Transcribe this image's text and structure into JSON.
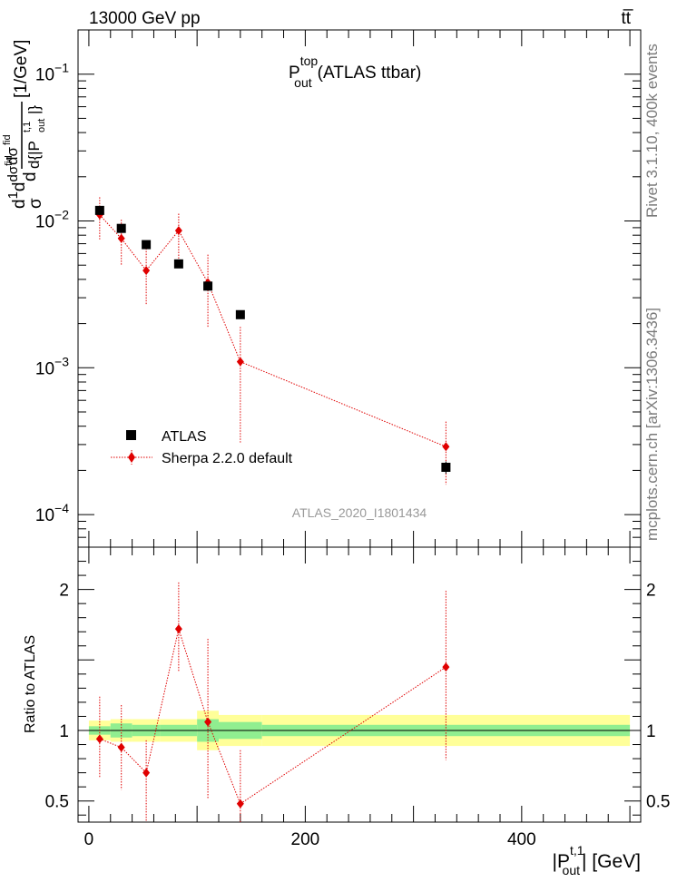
{
  "header": {
    "energy_label": "13000 GeV pp",
    "process_label": "tt̅"
  },
  "side_labels": {
    "rivet": "Rivet 3.1.10,  400k events",
    "mcplots": "mcplots.cern.ch [arXiv:1306.3436]"
  },
  "colors": {
    "data": "#000000",
    "mc": "#e00000",
    "band_inner": "#90ee90",
    "band_outer": "#ffff99",
    "watermark": "#999999"
  },
  "chart_data": [
    {
      "type": "scatter",
      "title_main": "P",
      "title_sup": "top",
      "title_sub": "out",
      "title_tail": "(ATLAS ttbar)",
      "ylabel": "d¹⁄σ d dσᶠᶦᵈ / d{|Pᵗ·¹ out|} [1/GeV]",
      "ylabel_unit": "[1/GeV]",
      "yscale": "log",
      "ylim": [
        6e-05,
        0.2
      ],
      "xlim": [
        -10,
        510
      ],
      "y_ticks": [
        {
          "value": 0.1,
          "base": "10",
          "exp": "−1"
        },
        {
          "value": 0.01,
          "base": "10",
          "exp": "−2"
        },
        {
          "value": 0.001,
          "base": "10",
          "exp": "−3"
        },
        {
          "value": 0.0001,
          "base": "10",
          "exp": "−4"
        }
      ],
      "watermark": "ATLAS_2020_I1801434",
      "legend_position": "bottom-left",
      "series": [
        {
          "name": "ATLAS",
          "marker": "square",
          "x": [
            10,
            30,
            53,
            83,
            110,
            140,
            330
          ],
          "y": [
            0.0118,
            0.0089,
            0.0069,
            0.0051,
            0.0036,
            0.0023,
            0.00021
          ],
          "yerr_low": [
            0.0008,
            0.0006,
            0.0004,
            0.0003,
            0.0002,
            0.00012,
            2e-05
          ],
          "yerr_high": [
            0.0008,
            0.0006,
            0.0004,
            0.0003,
            0.0002,
            0.00012,
            2e-05
          ]
        },
        {
          "name": "Sherpa 2.2.0 default",
          "marker": "diamond",
          "x": [
            10,
            30,
            53,
            83,
            110,
            140,
            330
          ],
          "y": [
            0.011,
            0.0076,
            0.0046,
            0.0086,
            0.0038,
            0.0011,
            0.00029
          ],
          "y_low": [
            0.0075,
            0.005,
            0.0027,
            0.0055,
            0.0019,
            0.00031,
            0.00016
          ],
          "y_high": [
            0.0145,
            0.0102,
            0.0068,
            0.0112,
            0.0059,
            0.0019,
            0.00043
          ]
        }
      ]
    },
    {
      "type": "scatter",
      "ylabel": "Ratio to ATLAS",
      "xlabel_main": "|P",
      "xlabel_sup": "t,1",
      "xlabel_sub": "out",
      "xlabel_tail": "| [GeV]",
      "xlim": [
        -10,
        510
      ],
      "ylim": [
        0.35,
        2.3
      ],
      "x_ticks": [
        0,
        200,
        400
      ],
      "y_ticks": [
        0.5,
        1,
        2
      ],
      "band": {
        "edges": [
          0,
          20,
          40,
          66,
          100,
          120,
          160,
          500
        ],
        "inner_low": [
          0.97,
          0.95,
          0.96,
          0.96,
          0.92,
          0.94,
          0.96
        ],
        "inner_high": [
          1.03,
          1.05,
          1.04,
          1.04,
          1.08,
          1.06,
          1.04
        ],
        "outer_low": [
          0.93,
          0.92,
          0.92,
          0.92,
          0.86,
          0.89,
          0.89
        ],
        "outer_high": [
          1.07,
          1.08,
          1.08,
          1.08,
          1.14,
          1.11,
          1.11
        ]
      },
      "series": [
        {
          "name": "Sherpa 2.2.0 default",
          "x": [
            10,
            30,
            53,
            83,
            110,
            140,
            330
          ],
          "y": [
            0.94,
            0.88,
            0.7,
            1.72,
            1.06,
            0.48,
            1.45
          ],
          "y_low": [
            0.67,
            0.58,
            0.36,
            1.42,
            0.52,
            0.35,
            0.79
          ],
          "y_high": [
            1.24,
            1.18,
            0.93,
            2.05,
            1.65,
            0.86,
            1.99
          ]
        }
      ]
    }
  ]
}
